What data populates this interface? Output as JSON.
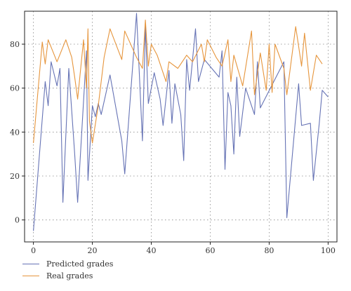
{
  "chart_data": {
    "type": "line",
    "xlim": [
      -3,
      103
    ],
    "ylim": [
      -10,
      95
    ],
    "xticks": [
      0,
      20,
      40,
      60,
      80,
      100
    ],
    "yticks": [
      0,
      20,
      40,
      60,
      80
    ],
    "grid": true,
    "legend_position": "bottom-left",
    "series": [
      {
        "name": "Predicted grades",
        "color": "#6673b5",
        "points": [
          [
            0,
            -5
          ],
          [
            4,
            63
          ],
          [
            5,
            52
          ],
          [
            6,
            72
          ],
          [
            8,
            61
          ],
          [
            9,
            69
          ],
          [
            10,
            8
          ],
          [
            12,
            69
          ],
          [
            14,
            30
          ],
          [
            15,
            8
          ],
          [
            18,
            77
          ],
          [
            18.5,
            18
          ],
          [
            20,
            52
          ],
          [
            21,
            47
          ],
          [
            22,
            53
          ],
          [
            23,
            48
          ],
          [
            26,
            66
          ],
          [
            30,
            36
          ],
          [
            31,
            21
          ],
          [
            35,
            94
          ],
          [
            37,
            36
          ],
          [
            38,
            88
          ],
          [
            39,
            53
          ],
          [
            41,
            67
          ],
          [
            43,
            55
          ],
          [
            44,
            43
          ],
          [
            46,
            68
          ],
          [
            47,
            44
          ],
          [
            48,
            62
          ],
          [
            50,
            48
          ],
          [
            51,
            27
          ],
          [
            52,
            73
          ],
          [
            53,
            59
          ],
          [
            55,
            87
          ],
          [
            56,
            63
          ],
          [
            58,
            73
          ],
          [
            63,
            65
          ],
          [
            64,
            77
          ],
          [
            65,
            23
          ],
          [
            66,
            58
          ],
          [
            67,
            52
          ],
          [
            68,
            30
          ],
          [
            69,
            65
          ],
          [
            70,
            38
          ],
          [
            72,
            60
          ],
          [
            75,
            48
          ],
          [
            76,
            72
          ],
          [
            77,
            51
          ],
          [
            85,
            72
          ],
          [
            86,
            1
          ],
          [
            90,
            62
          ],
          [
            91,
            43
          ],
          [
            94,
            44
          ],
          [
            95,
            18
          ],
          [
            97,
            44
          ],
          [
            98,
            59
          ],
          [
            100,
            56
          ]
        ]
      },
      {
        "name": "Real grades",
        "color": "#e6953c",
        "points": [
          [
            0,
            35
          ],
          [
            3,
            81
          ],
          [
            4,
            71
          ],
          [
            5,
            82
          ],
          [
            8,
            72
          ],
          [
            11,
            82
          ],
          [
            13,
            74
          ],
          [
            14,
            65
          ],
          [
            15,
            55
          ],
          [
            17,
            82
          ],
          [
            18,
            60
          ],
          [
            18.5,
            87
          ],
          [
            19,
            45
          ],
          [
            20,
            35
          ],
          [
            22,
            52
          ],
          [
            24,
            74
          ],
          [
            26,
            87
          ],
          [
            30,
            73
          ],
          [
            31,
            86
          ],
          [
            35,
            74
          ],
          [
            37,
            69
          ],
          [
            38,
            91
          ],
          [
            39,
            70
          ],
          [
            40,
            80
          ],
          [
            42,
            75
          ],
          [
            45,
            63
          ],
          [
            46,
            72
          ],
          [
            49,
            69
          ],
          [
            52,
            75
          ],
          [
            54,
            72
          ],
          [
            57,
            80
          ],
          [
            58,
            72
          ],
          [
            59,
            82
          ],
          [
            62,
            74
          ],
          [
            64,
            70
          ],
          [
            66,
            82
          ],
          [
            67,
            63
          ],
          [
            68,
            75
          ],
          [
            71,
            61
          ],
          [
            74,
            86
          ],
          [
            75,
            57
          ],
          [
            77,
            76
          ],
          [
            79,
            59
          ],
          [
            80,
            80
          ],
          [
            81,
            58
          ],
          [
            82,
            80
          ],
          [
            85,
            69
          ],
          [
            86,
            57
          ],
          [
            89,
            88
          ],
          [
            91,
            70
          ],
          [
            92,
            85
          ],
          [
            94,
            59
          ],
          [
            96,
            75
          ],
          [
            98,
            71
          ]
        ]
      }
    ]
  }
}
